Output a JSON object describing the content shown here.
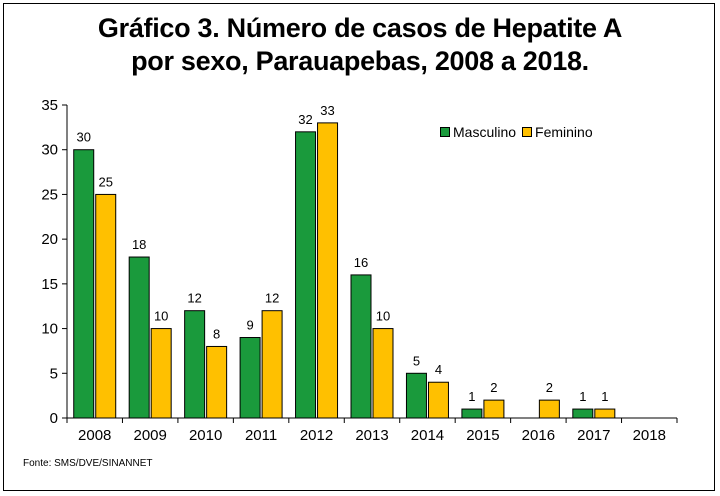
{
  "chart_data": {
    "type": "bar",
    "title": "Gráfico 3. Número de casos de Hepatite A",
    "subtitle": "por sexo, Parauapebas, 2008 a 2018.",
    "categories": [
      "2008",
      "2009",
      "2010",
      "2011",
      "2012",
      "2013",
      "2014",
      "2015",
      "2016",
      "2017",
      "2018"
    ],
    "series": [
      {
        "name": "Masculino",
        "color": "#1a9a3c",
        "values": [
          30,
          18,
          12,
          9,
          32,
          16,
          5,
          1,
          null,
          1,
          null
        ]
      },
      {
        "name": "Feminino",
        "color": "#ffc000",
        "values": [
          25,
          10,
          8,
          12,
          33,
          10,
          4,
          2,
          2,
          1,
          null
        ]
      }
    ],
    "ylim": [
      0,
      35
    ],
    "yticks": [
      0,
      5,
      10,
      15,
      20,
      25,
      30,
      35
    ],
    "xlabel": "",
    "ylabel": "",
    "legend_position": "top-right",
    "grid": false,
    "source": "Fonte: SMS/DVE/SINANNET"
  }
}
